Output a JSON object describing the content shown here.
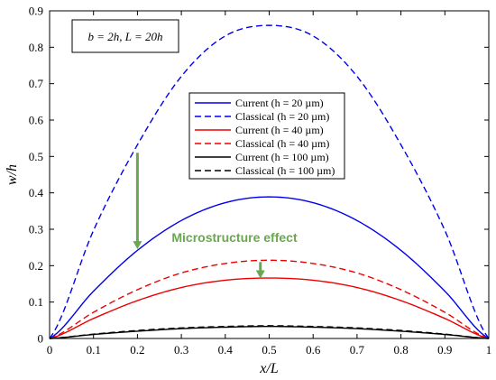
{
  "chart_data": {
    "type": "line",
    "title": "",
    "xlabel": "x/L",
    "ylabel": "w/h",
    "xlim": [
      0,
      1
    ],
    "ylim": [
      0,
      0.9
    ],
    "xticks": [
      "0",
      "0.1",
      "0.2",
      "0.3",
      "0.4",
      "0.5",
      "0.6",
      "0.7",
      "0.8",
      "0.9",
      "1"
    ],
    "yticks": [
      "0",
      "0.1",
      "0.2",
      "0.3",
      "0.4",
      "0.5",
      "0.6",
      "0.7",
      "0.8",
      "0.9"
    ],
    "grid": false,
    "legend_position": "center",
    "x": [
      0,
      0.1,
      0.2,
      0.3,
      0.4,
      0.5,
      0.6,
      0.7,
      0.8,
      0.9,
      1
    ],
    "series": [
      {
        "name": "Current (h = 20 µm)",
        "color": "#0000ee",
        "dash": "solid",
        "values": [
          0,
          0.13,
          0.242,
          0.324,
          0.373,
          0.389,
          0.373,
          0.324,
          0.242,
          0.13,
          0
        ]
      },
      {
        "name": "Classical (h = 20 µm)",
        "color": "#0000ee",
        "dash": "dashed",
        "values": [
          0,
          0.297,
          0.532,
          0.72,
          0.831,
          0.86,
          0.831,
          0.72,
          0.532,
          0.297,
          0
        ]
      },
      {
        "name": "Current (h = 40 µm)",
        "color": "#ee0000",
        "dash": "solid",
        "values": [
          0,
          0.055,
          0.104,
          0.14,
          0.16,
          0.166,
          0.16,
          0.14,
          0.104,
          0.055,
          0
        ]
      },
      {
        "name": "Classical (h = 40 µm)",
        "color": "#ee0000",
        "dash": "dashed",
        "values": [
          0,
          0.072,
          0.134,
          0.18,
          0.206,
          0.215,
          0.206,
          0.18,
          0.134,
          0.072,
          0
        ]
      },
      {
        "name": "Current (h = 100 µm)",
        "color": "#000000",
        "dash": "solid",
        "values": [
          0,
          0.011,
          0.02,
          0.027,
          0.031,
          0.033,
          0.031,
          0.027,
          0.02,
          0.011,
          0
        ]
      },
      {
        "name": "Classical (h = 100 µm)",
        "color": "#000000",
        "dash": "dashed",
        "values": [
          0,
          0.012,
          0.022,
          0.029,
          0.033,
          0.035,
          0.033,
          0.029,
          0.022,
          0.012,
          0
        ]
      }
    ],
    "annotations": {
      "box_text": "b = 2h, L = 20h",
      "effect_text": "Microstructure effect",
      "effect_color": "#6aa84f",
      "arrows": [
        {
          "x": 0.2,
          "y_from": 0.51,
          "y_to": 0.245
        },
        {
          "x": 0.48,
          "y_from": 0.21,
          "y_to": 0.165
        }
      ]
    }
  }
}
